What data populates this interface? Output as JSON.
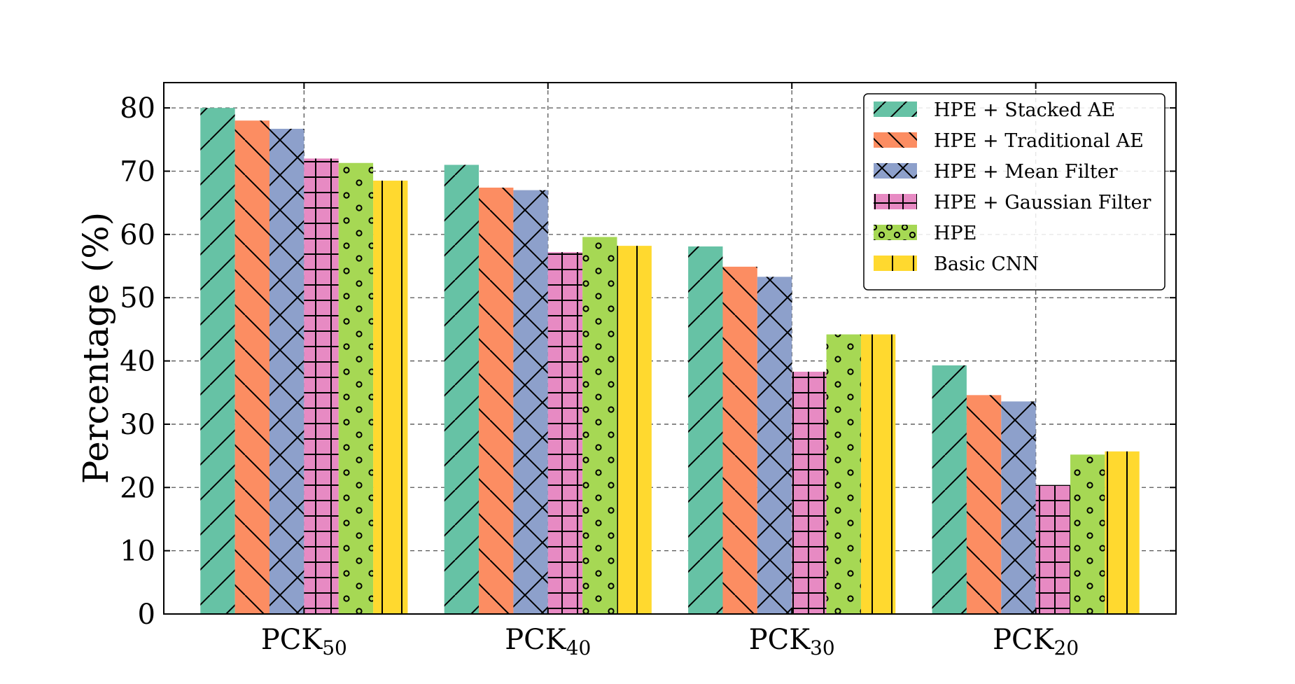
{
  "chart_data": {
    "type": "bar",
    "categories": [
      "PCK50",
      "PCK40",
      "PCK30",
      "PCK20"
    ],
    "category_labels": [
      {
        "base": "PCK",
        "sub": "50"
      },
      {
        "base": "PCK",
        "sub": "40"
      },
      {
        "base": "PCK",
        "sub": "30"
      },
      {
        "base": "PCK",
        "sub": "20"
      }
    ],
    "series": [
      {
        "name": "HPE + Stacked AE",
        "color": "#66c2a5",
        "hatch": "forward-diagonal",
        "values": [
          80.0,
          71.0,
          58.1,
          39.3
        ]
      },
      {
        "name": "HPE + Traditional AE",
        "color": "#fc8d62",
        "hatch": "back-diagonal",
        "values": [
          78.0,
          67.4,
          54.9,
          34.6
        ]
      },
      {
        "name": "HPE + Mean Filter",
        "color": "#8da0cb",
        "hatch": "cross-diagonal",
        "values": [
          76.7,
          67.0,
          53.3,
          33.6
        ]
      },
      {
        "name": "HPE + Gaussian Filter",
        "color": "#e78ac3",
        "hatch": "grid",
        "values": [
          72.0,
          57.2,
          38.3,
          20.4
        ]
      },
      {
        "name": "HPE",
        "color": "#a6d854",
        "hatch": "circles",
        "values": [
          71.3,
          59.6,
          44.2,
          25.2
        ]
      },
      {
        "name": "Basic CNN",
        "color": "#ffd92f",
        "hatch": "vertical",
        "values": [
          68.5,
          58.2,
          44.2,
          25.7
        ]
      }
    ],
    "title": "",
    "xlabel": "",
    "ylabel": "Percentage (%)",
    "ylim": [
      0,
      84
    ],
    "yticks": [
      0,
      10,
      20,
      30,
      40,
      50,
      60,
      70,
      80
    ],
    "grid": true,
    "legend_position": "top-right"
  }
}
